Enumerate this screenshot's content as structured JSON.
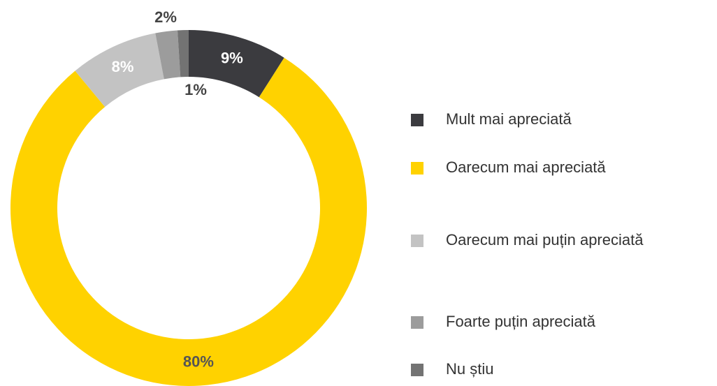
{
  "chart_data": {
    "type": "donut",
    "categories": [
      "Mult mai apreciată",
      "Oarecum mai apreciată",
      "Oarecum mai puțin apreciată",
      "Foarte puțin apreciată",
      "Nu știu"
    ],
    "values": [
      9,
      80,
      8,
      2,
      1
    ],
    "value_labels": [
      "9%",
      "80%",
      "8%",
      "2%",
      "1%"
    ],
    "colors": [
      "#3b3b3f",
      "#ffd200",
      "#c3c3c3",
      "#9c9c9c",
      "#737373"
    ],
    "legend": "right"
  }
}
